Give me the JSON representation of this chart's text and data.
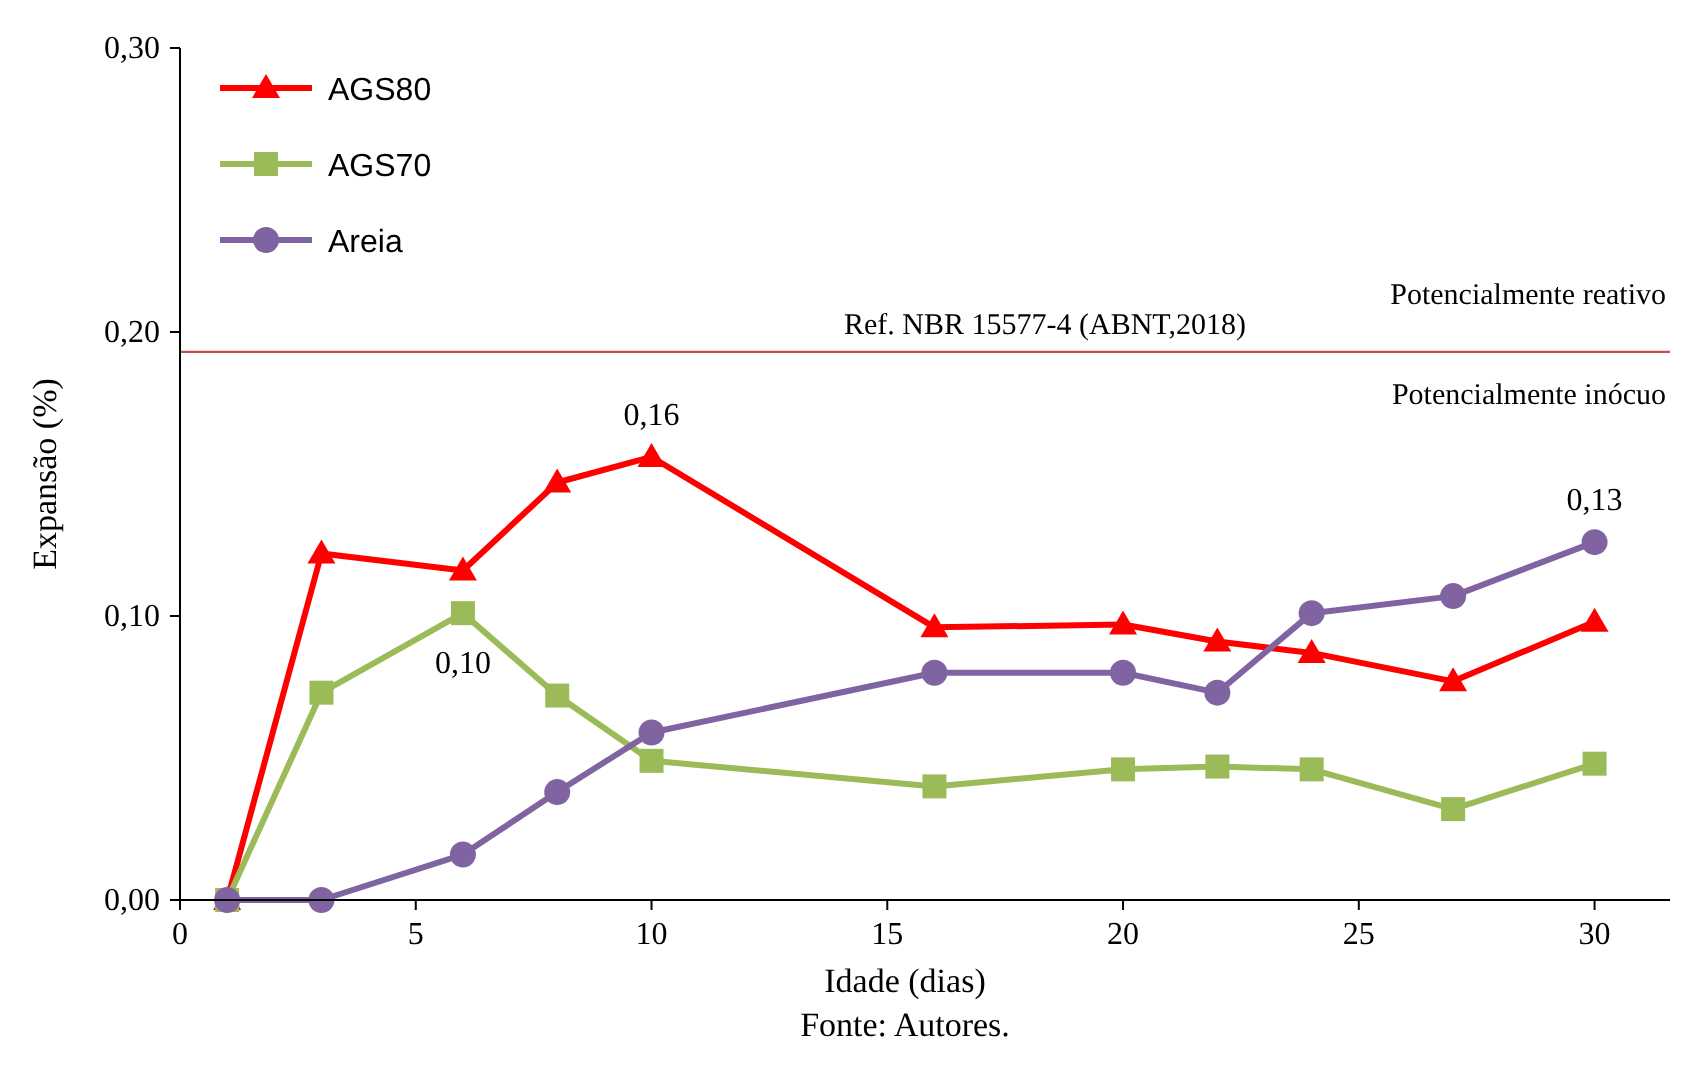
{
  "chart_data": {
    "type": "line",
    "xlabel": "Idade (dias)",
    "ylabel": "Expansão (%)",
    "xlim": [
      0,
      31.6
    ],
    "xticks": [
      0,
      5,
      10,
      15,
      20,
      25,
      30
    ],
    "ylim": [
      0,
      0.3
    ],
    "yticks": [
      {
        "value": 0,
        "label": "0,00"
      },
      {
        "value": 0.1,
        "label": "0,10"
      },
      {
        "value": 0.2,
        "label": "0,20"
      },
      {
        "value": 0.3,
        "label": "0,30"
      }
    ],
    "x": [
      1,
      3,
      6,
      8,
      10,
      16,
      20,
      22,
      24,
      27,
      30
    ],
    "series": [
      {
        "name": "AGS80",
        "color": "#ff0000",
        "marker": "triangle",
        "values": [
          0,
          0.122,
          0.116,
          0.147,
          0.156,
          0.096,
          0.097,
          0.091,
          0.087,
          0.077,
          0.098
        ]
      },
      {
        "name": "AGS70",
        "color": "#9bbb59",
        "marker": "square",
        "values": [
          0,
          0.073,
          0.101,
          0.072,
          0.049,
          0.04,
          0.046,
          0.047,
          0.046,
          0.032,
          0.048
        ]
      },
      {
        "name": "Areia",
        "color": "#8064a2",
        "marker": "circle",
        "values": [
          0,
          0,
          0.016,
          0.038,
          0.059,
          0.08,
          0.08,
          0.073,
          0.101,
          0.107,
          0.126
        ]
      }
    ],
    "ref_lines": [
      {
        "axis": "y",
        "value": 0.193,
        "label": "Ref. NBR 15577-4 (ABNT,2018)",
        "color": "#c0504d"
      }
    ],
    "annotations": [
      {
        "text": "0,16",
        "x": 10,
        "y": 0.156
      },
      {
        "text": "0,10",
        "x": 6,
        "y": 0.101
      },
      {
        "text": "0,13",
        "x": 30,
        "y": 0.126
      },
      {
        "text": "Potencialmente reativo",
        "y": 0.193
      },
      {
        "text": "Potencialmente inócuo",
        "y": 0.193
      },
      "Fonte: Autores."
    ],
    "legend": "top left",
    "grid": false
  }
}
